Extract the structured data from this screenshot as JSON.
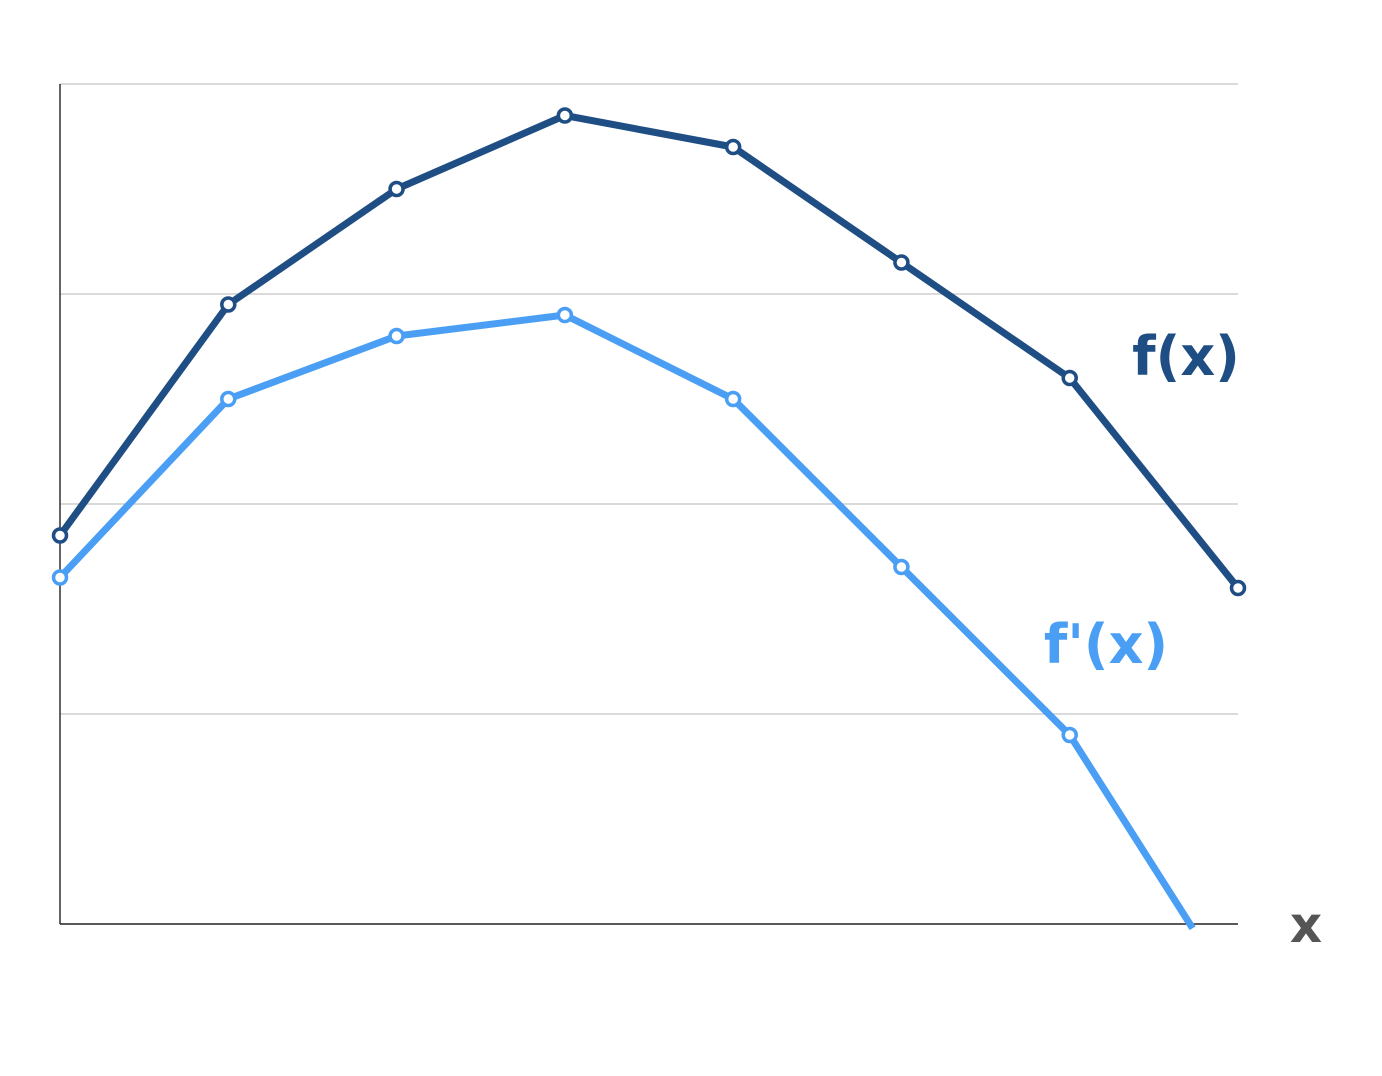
{
  "chart_data": {
    "type": "line",
    "title": "",
    "xlabel": "x",
    "ylabel": "",
    "grid": true,
    "x": [
      0,
      1,
      2,
      3,
      4,
      5,
      6,
      7
    ],
    "xlim": [
      0,
      7
    ],
    "ylim": [
      0,
      4
    ],
    "yticks": [
      0,
      1,
      2,
      3,
      4
    ],
    "series": [
      {
        "name": "f(x)",
        "color": "#1f4e84",
        "x": [
          0,
          1,
          2,
          3,
          4,
          5,
          6,
          7
        ],
        "values": [
          1.85,
          2.95,
          3.5,
          3.85,
          3.7,
          3.15,
          2.6,
          1.6
        ],
        "markers": true
      },
      {
        "name": "f'(x)",
        "color": "#4a9ff5",
        "x": [
          0,
          1,
          2,
          3,
          4,
          5,
          6,
          6.73
        ],
        "values": [
          1.65,
          2.5,
          2.8,
          2.9,
          2.5,
          1.7,
          0.9,
          -0.02
        ],
        "markers": [
          true,
          true,
          true,
          true,
          true,
          true,
          true,
          false
        ]
      }
    ]
  }
}
